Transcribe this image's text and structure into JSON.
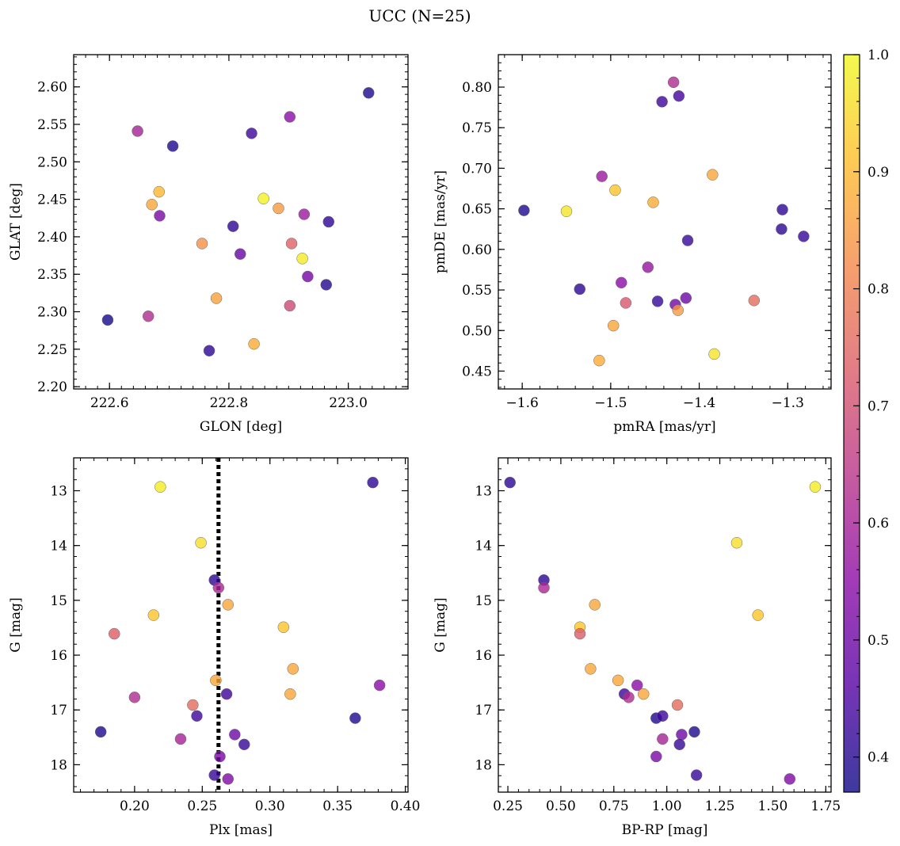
{
  "figure": {
    "title": "UCC (N=25)",
    "colorbar": {
      "ticks": [
        "0.4",
        "0.5",
        "0.6",
        "0.7",
        "0.8",
        "0.9",
        "1.0"
      ],
      "range": [
        0.37,
        1.0
      ],
      "colormap": "plasma",
      "colormap_stops": [
        "#0d0887",
        "#5302a3",
        "#8b0aa5",
        "#b83289",
        "#db5c68",
        "#f48849",
        "#febd2a",
        "#f0f921"
      ],
      "marker_alpha": 0.8
    }
  },
  "chart_data": [
    {
      "type": "scatter",
      "title": "",
      "xlabel": "GLON [deg]",
      "ylabel": "GLAT [deg]",
      "xlim": [
        222.54,
        223.1
      ],
      "ylim": [
        2.197,
        2.643
      ],
      "xticks": [
        "222.6",
        "222.8",
        "223.0"
      ],
      "yticks": [
        "2.20",
        "2.25",
        "2.30",
        "2.35",
        "2.40",
        "2.45",
        "2.50",
        "2.55",
        "2.60"
      ],
      "x": [
        222.597,
        222.647,
        222.706,
        223.034,
        222.838,
        222.902,
        222.671,
        222.683,
        222.858,
        222.883,
        222.926,
        222.684,
        222.967,
        222.807,
        222.755,
        222.905,
        222.819,
        222.923,
        222.932,
        222.963,
        222.779,
        222.902,
        222.665,
        222.767,
        222.842
      ],
      "y": [
        2.289,
        2.541,
        2.521,
        2.592,
        2.538,
        2.56,
        2.443,
        2.46,
        2.451,
        2.438,
        2.43,
        2.428,
        2.42,
        2.414,
        2.391,
        2.391,
        2.377,
        2.371,
        2.347,
        2.336,
        2.318,
        2.308,
        2.294,
        2.248,
        2.257
      ],
      "c": [
        0.38,
        0.6,
        0.39,
        0.39,
        0.43,
        0.55,
        0.87,
        0.9,
        0.99,
        0.85,
        0.58,
        0.52,
        0.41,
        0.41,
        0.83,
        0.74,
        0.49,
        0.98,
        0.51,
        0.4,
        0.86,
        0.69,
        0.62,
        0.41,
        0.88
      ]
    },
    {
      "type": "scatter",
      "title": "",
      "xlabel": "pmRA [mas/yr]",
      "ylabel": "pmDE [mas/yr]",
      "xlim": [
        -1.627,
        -1.251
      ],
      "ylim": [
        0.428,
        0.84
      ],
      "xticks": [
        "−1.6",
        "−1.5",
        "−1.4",
        "−1.3"
      ],
      "yticks": [
        "0.45",
        "0.50",
        "0.55",
        "0.60",
        "0.65",
        "0.70",
        "0.75",
        "0.80"
      ],
      "x": [
        -1.598,
        -1.55,
        -1.535,
        -1.51,
        -1.495,
        -1.513,
        -1.497,
        -1.488,
        -1.483,
        -1.458,
        -1.452,
        -1.447,
        -1.442,
        -1.429,
        -1.427,
        -1.423,
        -1.424,
        -1.415,
        -1.413,
        -1.385,
        -1.383,
        -1.338,
        -1.306,
        -1.307,
        -1.282
      ],
      "y": [
        0.648,
        0.647,
        0.551,
        0.69,
        0.673,
        0.463,
        0.506,
        0.559,
        0.534,
        0.578,
        0.658,
        0.536,
        0.782,
        0.806,
        0.532,
        0.789,
        0.525,
        0.54,
        0.611,
        0.692,
        0.471,
        0.537,
        0.649,
        0.625,
        0.616
      ],
      "c": [
        0.39,
        0.97,
        0.41,
        0.58,
        0.92,
        0.88,
        0.87,
        0.55,
        0.72,
        0.57,
        0.88,
        0.42,
        0.43,
        0.62,
        0.51,
        0.44,
        0.85,
        0.5,
        0.42,
        0.87,
        0.97,
        0.76,
        0.41,
        0.41,
        0.42
      ]
    },
    {
      "type": "scatter",
      "title": "",
      "xlabel": "Plx [mas]",
      "ylabel": "G [mag]",
      "xlim": [
        0.155,
        0.402
      ],
      "ylim": [
        18.5,
        12.4
      ],
      "y_inverted": true,
      "xticks": [
        "0.20",
        "0.25",
        "0.30",
        "0.35",
        "0.40"
      ],
      "yticks": [
        "13",
        "14",
        "15",
        "16",
        "17",
        "18"
      ],
      "vline": 0.262,
      "x": [
        0.219,
        0.376,
        0.249,
        0.259,
        0.262,
        0.269,
        0.214,
        0.31,
        0.185,
        0.317,
        0.26,
        0.381,
        0.2,
        0.243,
        0.268,
        0.315,
        0.246,
        0.363,
        0.175,
        0.234,
        0.274,
        0.281,
        0.263,
        0.259,
        0.269
      ],
      "y": [
        12.93,
        12.85,
        13.95,
        14.63,
        14.77,
        15.08,
        15.27,
        15.49,
        15.61,
        16.25,
        16.46,
        16.55,
        16.77,
        16.91,
        16.71,
        16.71,
        17.11,
        17.15,
        17.4,
        17.53,
        17.45,
        17.63,
        17.85,
        18.19,
        18.26
      ],
      "c": [
        0.98,
        0.41,
        0.96,
        0.41,
        0.61,
        0.87,
        0.92,
        0.92,
        0.73,
        0.87,
        0.87,
        0.55,
        0.62,
        0.76,
        0.43,
        0.87,
        0.43,
        0.39,
        0.39,
        0.6,
        0.5,
        0.42,
        0.52,
        0.42,
        0.53
      ]
    },
    {
      "type": "scatter",
      "title": "",
      "xlabel": "BP-RP [mag]",
      "ylabel": "G [mag]",
      "xlim": [
        0.205,
        1.775
      ],
      "ylim": [
        18.5,
        12.4
      ],
      "y_inverted": true,
      "xticks": [
        "0.25",
        "0.50",
        "0.75",
        "1.00",
        "1.25",
        "1.50",
        "1.75"
      ],
      "yticks": [
        "13",
        "14",
        "15",
        "16",
        "17",
        "18"
      ],
      "x": [
        0.26,
        1.7,
        1.33,
        0.42,
        0.42,
        0.66,
        1.43,
        0.59,
        0.59,
        0.64,
        0.77,
        0.86,
        0.89,
        0.8,
        0.82,
        1.05,
        0.95,
        0.98,
        1.13,
        0.98,
        1.07,
        1.06,
        0.95,
        1.14,
        1.58
      ],
      "y": [
        12.85,
        12.93,
        13.95,
        14.63,
        14.77,
        15.08,
        15.27,
        15.49,
        15.61,
        16.25,
        16.46,
        16.55,
        16.71,
        16.71,
        16.77,
        16.91,
        17.15,
        17.11,
        17.4,
        17.53,
        17.45,
        17.63,
        17.85,
        18.19,
        18.26
      ],
      "c": [
        0.41,
        0.98,
        0.96,
        0.41,
        0.61,
        0.87,
        0.92,
        0.92,
        0.73,
        0.87,
        0.87,
        0.55,
        0.87,
        0.43,
        0.62,
        0.76,
        0.39,
        0.43,
        0.39,
        0.6,
        0.5,
        0.42,
        0.52,
        0.42,
        0.53
      ]
    }
  ]
}
